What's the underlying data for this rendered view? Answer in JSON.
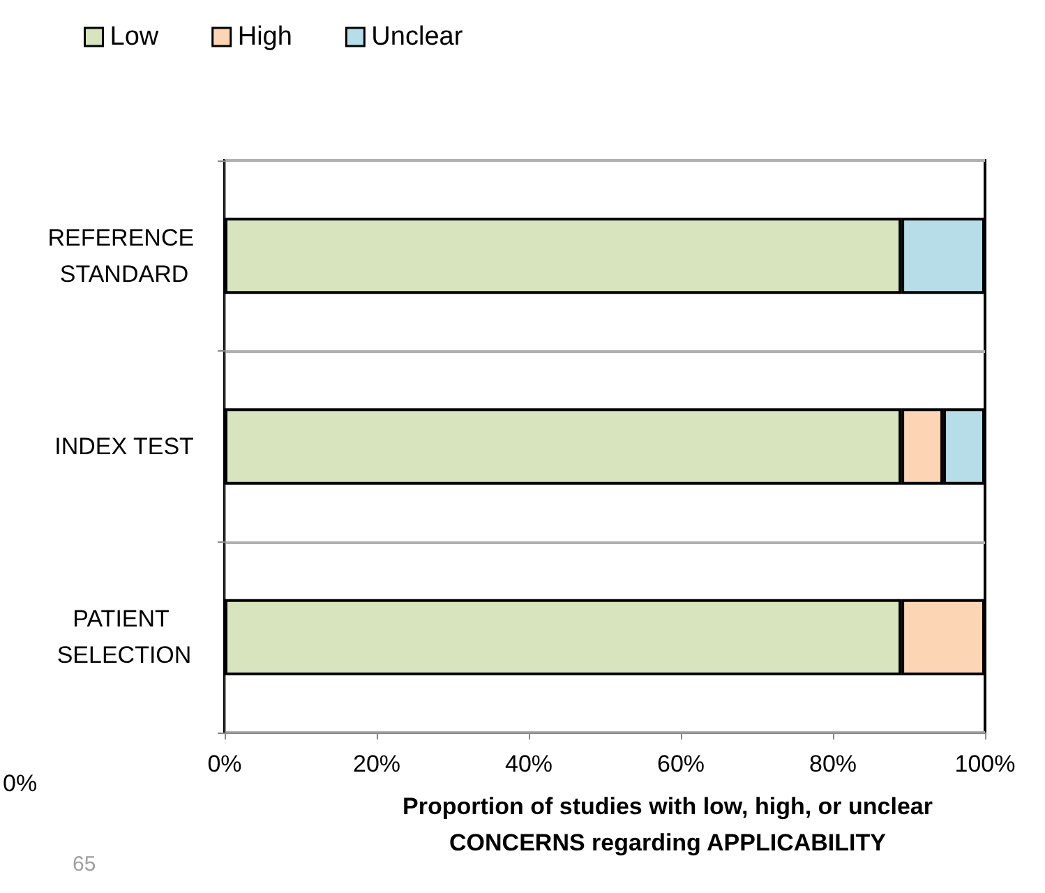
{
  "chart_data": {
    "type": "bar",
    "orientation": "horizontal",
    "stacked": true,
    "categories": [
      "REFERENCE STANDARD",
      "INDEX TEST",
      "PATIENT SELECTION"
    ],
    "series": [
      {
        "name": "Low",
        "color": "#d7e4bd",
        "values": [
          89,
          89,
          89
        ]
      },
      {
        "name": "High",
        "color": "#fcd5b5",
        "values": [
          null,
          5.5,
          11
        ]
      },
      {
        "name": "Unclear",
        "color": "#b7dde8",
        "values": [
          11,
          5.5,
          null
        ]
      }
    ],
    "xlim": [
      0,
      100
    ],
    "xticks": [
      {
        "value": 0,
        "label": "0%"
      },
      {
        "value": 20,
        "label": "20%"
      },
      {
        "value": 40,
        "label": "40%"
      },
      {
        "value": 60,
        "label": "60%"
      },
      {
        "value": 80,
        "label": "80%"
      },
      {
        "value": 100,
        "label": "100%"
      }
    ],
    "xlabel": "Proportion of studies with low, high, or unclear\nCONCERNS regarding APPLICABILITY",
    "grid": "y",
    "legend": "top left",
    "annotations": [
      "0%",
      "65"
    ]
  }
}
